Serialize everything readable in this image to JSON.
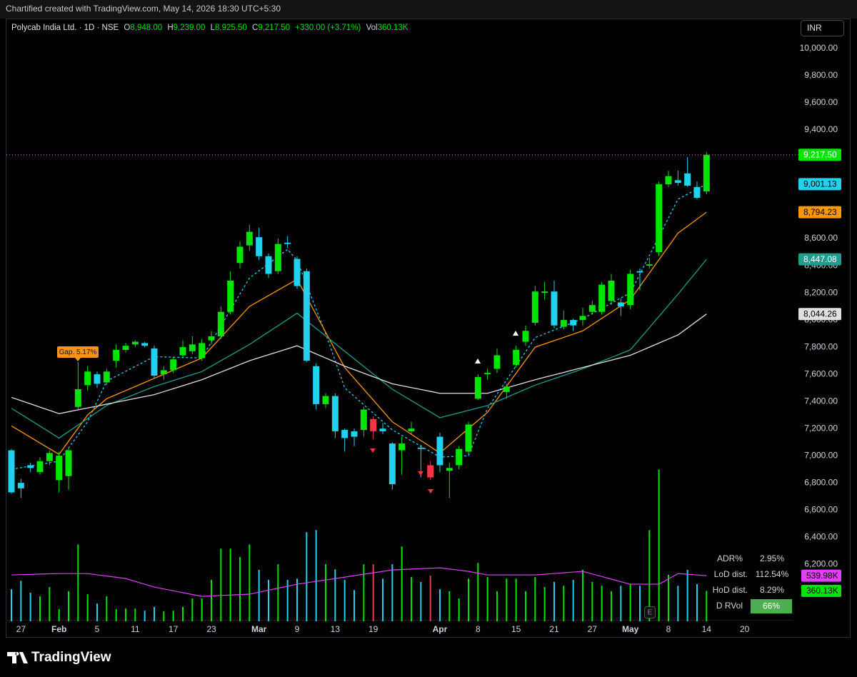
{
  "header": {
    "created": "Chartified created with TradingView.com, May 14, 2026 18:30 UTC+5:30",
    "currency": "INR",
    "brand": "TradingView"
  },
  "legend": {
    "symbol": "Polycab India Ltd. · 1D · NSE",
    "items": [
      {
        "key": "O",
        "value": "8,948.00"
      },
      {
        "key": "H",
        "value": "9,239.00"
      },
      {
        "key": "L",
        "value": "8,925.50"
      },
      {
        "key": "C",
        "value": "9,217.50"
      }
    ],
    "change": "+330.00 (+3.71%)",
    "vol_key": "Vol",
    "vol": "360.13K"
  },
  "stats": [
    {
      "label": "ADR%",
      "value": "2.95%"
    },
    {
      "label": "LoD dist.",
      "value": "112.54%"
    },
    {
      "label": "HoD dist.",
      "value": "8.29%"
    },
    {
      "label": "D RVol",
      "value": "66%"
    }
  ],
  "chart_data": {
    "type": "candlestick",
    "annotation": "Gap. 5.17%",
    "earnings_icon": "E",
    "categories": [
      null,
      "27",
      null,
      null,
      null,
      "Feb",
      null,
      null,
      null,
      "5",
      null,
      null,
      null,
      "11",
      null,
      null,
      null,
      "17",
      null,
      null,
      null,
      "23",
      null,
      null,
      null,
      null,
      "Mar",
      null,
      null,
      null,
      "9",
      null,
      null,
      null,
      "13",
      null,
      null,
      null,
      "19",
      null,
      null,
      null,
      null,
      null,
      null,
      "Apr",
      null,
      null,
      null,
      "8",
      null,
      null,
      null,
      "15",
      null,
      null,
      null,
      "21",
      null,
      null,
      null,
      "27",
      null,
      null,
      null,
      "May",
      null,
      null,
      null,
      "8",
      null,
      null,
      null,
      "14",
      null,
      null,
      null,
      "20"
    ],
    "open": [
      7040,
      6800,
      6930,
      6880,
      6960,
      6820,
      6850,
      7360,
      7520,
      7600,
      7540,
      7700,
      7780,
      7820,
      7830,
      7790,
      7600,
      7630,
      7740,
      7770,
      7720,
      7850,
      7880,
      8060,
      8420,
      8550,
      8610,
      8470,
      8360,
      8570,
      8450,
      8360,
      7660,
      7380,
      7440,
      7190,
      7180,
      7190,
      7270,
      7200,
      7090,
      7040,
      7180,
      7060,
      6930,
      7140,
      6890,
      6930,
      7030,
      7420,
      7600,
      7640,
      7470,
      7670,
      7840,
      7980,
      8200,
      8210,
      7950,
      8000,
      8000,
      8060,
      8060,
      8140,
      8130,
      8110,
      8360,
      8400,
      8500,
      9000,
      9030,
      9080,
      8980,
      8948,
      null,
      null,
      null,
      null
    ],
    "high": [
      7050,
      6830,
      6950,
      6990,
      7040,
      7030,
      7060,
      7690,
      7660,
      7620,
      7640,
      7820,
      7830,
      7850,
      7840,
      7810,
      7660,
      7730,
      7850,
      7880,
      7860,
      7920,
      8100,
      8360,
      8580,
      8700,
      8680,
      8490,
      8600,
      8620,
      8470,
      8380,
      7680,
      7460,
      7460,
      7200,
      7200,
      7360,
      7290,
      7240,
      7100,
      7140,
      7250,
      7080,
      6960,
      7170,
      6950,
      7070,
      7250,
      7600,
      7640,
      7790,
      7530,
      7810,
      7960,
      8250,
      8280,
      8290,
      8070,
      8010,
      8090,
      8140,
      8280,
      8340,
      8160,
      8370,
      8380,
      8460,
      9020,
      9100,
      9100,
      9200,
      9020,
      9239,
      null,
      null,
      null,
      null
    ],
    "low": [
      6720,
      6690,
      6880,
      6860,
      6930,
      6730,
      6750,
      7340,
      7480,
      7500,
      7520,
      7650,
      7760,
      7800,
      7800,
      7570,
      7560,
      7610,
      7720,
      7750,
      7700,
      7820,
      7860,
      8040,
      8380,
      8510,
      8440,
      8310,
      8340,
      8530,
      8230,
      7690,
      7340,
      7350,
      7130,
      7030,
      7070,
      7140,
      7120,
      7160,
      6750,
      6860,
      7160,
      6840,
      6820,
      6880,
      6690,
      6900,
      7010,
      7410,
      7560,
      7610,
      7420,
      7650,
      7810,
      7960,
      8150,
      7940,
      7930,
      7920,
      7960,
      8040,
      8040,
      8110,
      8030,
      8080,
      8220,
      8380,
      8470,
      8980,
      8990,
      8980,
      8890,
      8925.5,
      null,
      null,
      null,
      null
    ],
    "close": [
      6730,
      6760,
      6910,
      6960,
      7020,
      7000,
      7040,
      7490,
      7620,
      7530,
      7620,
      7780,
      7810,
      7840,
      7810,
      7590,
      7630,
      7710,
      7800,
      7820,
      7830,
      7880,
      8060,
      8290,
      8540,
      8650,
      8470,
      8340,
      8560,
      8560,
      8250,
      7700,
      7380,
      7440,
      7180,
      7130,
      7140,
      7340,
      7180,
      7180,
      6790,
      7090,
      7200,
      7050,
      6840,
      6930,
      6910,
      7050,
      7230,
      7580,
      7610,
      7740,
      7510,
      7780,
      7920,
      8210,
      8210,
      7960,
      8000,
      7960,
      8030,
      8110,
      8260,
      8290,
      8100,
      8340,
      8350,
      8410,
      9000,
      9060,
      9010,
      8990,
      8900,
      9217.5,
      null,
      null,
      null,
      null
    ],
    "last_label": "9,217.50",
    "last_color": "#00e600",
    "colors": [
      "#22d1ee",
      "#22d1ee",
      "#22d1ee",
      "#00e600",
      "#00e600",
      "#00e600",
      "#00e600",
      "#00e600",
      "#00e600",
      "#22d1ee",
      "#00e600",
      "#00e600",
      "#00e600",
      "#00e600",
      "#22d1ee",
      "#22d1ee",
      "#00e600",
      "#00e600",
      "#00e600",
      "#00e600",
      "#00e600",
      "#00e600",
      "#00e600",
      "#00e600",
      "#00e600",
      "#00e600",
      "#22d1ee",
      "#22d1ee",
      "#00e600",
      "#22d1ee",
      "#22d1ee",
      "#22d1ee",
      "#22d1ee",
      "#00e600",
      "#22d1ee",
      "#22d1ee",
      "#22d1ee",
      "#00e600",
      "#f23645",
      "#22d1ee",
      "#22d1ee",
      "#00e600",
      "#00e600",
      "#22d1ee",
      "#f23645",
      "#22d1ee",
      "#00e600",
      "#00e600",
      "#00e600",
      "#00e600",
      "#00e600",
      "#00e600",
      "#00e600",
      "#00e600",
      "#00e600",
      "#00e600",
      "#00e600",
      "#22d1ee",
      "#00e600",
      "#22d1ee",
      "#00e600",
      "#00e600",
      "#00e600",
      "#00e600",
      "#22d1ee",
      "#00e600",
      "#22d1ee",
      "#00e600",
      "#00e600",
      "#00e600",
      "#22d1ee",
      "#22d1ee",
      "#22d1ee",
      "#00e600",
      null,
      null,
      null,
      null
    ],
    "lines": [
      {
        "color": "#22d1ee",
        "dashed": true,
        "last_label": "9,001.13",
        "values": [
          6900,
          6912,
          6924,
          6936,
          6948,
          6960,
          7057,
          7153,
          7250,
          7400,
          7550,
          7586,
          7622,
          7658,
          7694,
          7730,
          7728,
          7726,
          7724,
          7722,
          7720,
          7838,
          7956,
          8074,
          8192,
          8310,
          8362,
          8415,
          8467,
          8520,
          8440,
          8260,
          8080,
          7900,
          7700,
          7500,
          7438,
          7376,
          7314,
          7252,
          7190,
          7150,
          7110,
          7070,
          7030,
          6990,
          6993,
          6997,
          7000,
          7175,
          7350,
          7454,
          7558,
          7662,
          7766,
          7870,
          7898,
          7926,
          7954,
          7982,
          8010,
          8048,
          8086,
          8124,
          8162,
          8200,
          8338,
          8476,
          8614,
          8752,
          8890,
          8927,
          8964,
          9001.13,
          null,
          null,
          null,
          null
        ]
      },
      {
        "color": "#ff9800",
        "dashed": false,
        "last_label": "8,794.23",
        "values": [
          7220,
          7178,
          7136,
          7094,
          7052,
          7010,
          7107,
          7203,
          7300,
          7360,
          7420,
          7450,
          7480,
          7510,
          7540,
          7570,
          7600,
          7630,
          7660,
          7690,
          7720,
          7796,
          7872,
          7948,
          8024,
          8100,
          8140,
          8180,
          8220,
          8260,
          8300,
          8170,
          8040,
          7910,
          7780,
          7650,
          7570,
          7490,
          7410,
          7330,
          7250,
          7204,
          7158,
          7112,
          7066,
          7020,
          7080,
          7140,
          7200,
          7260,
          7320,
          7416,
          7512,
          7608,
          7704,
          7800,
          7824,
          7848,
          7872,
          7896,
          7920,
          7966,
          8012,
          8058,
          8104,
          8150,
          8248,
          8346,
          8444,
          8542,
          8640,
          8691,
          8743,
          8794.23,
          null,
          null,
          null,
          null
        ]
      },
      {
        "color": "#1f9e8e",
        "dashed": false,
        "last_label": "8,447.08",
        "values": [
          7350,
          7306,
          7262,
          7218,
          7174,
          7130,
          7178,
          7226,
          7274,
          7322,
          7370,
          7398,
          7426,
          7454,
          7482,
          7510,
          7532,
          7554,
          7576,
          7598,
          7620,
          7660,
          7700,
          7740,
          7780,
          7820,
          7866,
          7912,
          7958,
          8004,
          8050,
          7994,
          7938,
          7882,
          7826,
          7770,
          7714,
          7658,
          7602,
          7546,
          7490,
          7448,
          7406,
          7364,
          7322,
          7280,
          7298,
          7316,
          7334,
          7352,
          7370,
          7400,
          7430,
          7460,
          7490,
          7520,
          7544,
          7568,
          7592,
          7616,
          7640,
          7668,
          7696,
          7724,
          7752,
          7780,
          7862,
          7944,
          8026,
          8108,
          8190,
          8276,
          8361,
          8447.08,
          null,
          null,
          null,
          null
        ]
      },
      {
        "color": "#e0e0e0",
        "dashed": false,
        "last_label": "8,044.26",
        "values": [
          7430,
          7406,
          7382,
          7358,
          7334,
          7310,
          7324,
          7338,
          7352,
          7366,
          7380,
          7394,
          7408,
          7422,
          7436,
          7450,
          7472,
          7494,
          7516,
          7538,
          7560,
          7588,
          7616,
          7644,
          7672,
          7700,
          7722,
          7744,
          7766,
          7788,
          7810,
          7780,
          7750,
          7720,
          7690,
          7660,
          7634,
          7608,
          7582,
          7556,
          7530,
          7516,
          7502,
          7488,
          7474,
          7460,
          7460,
          7460,
          7460,
          7460,
          7460,
          7480,
          7500,
          7520,
          7540,
          7560,
          7578,
          7596,
          7614,
          7632,
          7650,
          7668,
          7686,
          7704,
          7722,
          7740,
          7770,
          7800,
          7830,
          7860,
          7890,
          7941,
          7993,
          8044.26,
          null,
          null,
          null,
          null
        ]
      }
    ],
    "volume": {
      "last_label": "360.13K",
      "last_color": "#00e600",
      "values": [
        380,
        480,
        340,
        295,
        405,
        145,
        355,
        910,
        320,
        210,
        295,
        145,
        150,
        150,
        125,
        170,
        120,
        125,
        170,
        270,
        270,
        490,
        860,
        860,
        760,
        910,
        610,
        490,
        675,
        490,
        505,
        1055,
        1080,
        675,
        615,
        490,
        370,
        675,
        675,
        505,
        675,
        885,
        525,
        465,
        540,
        380,
        355,
        270,
        505,
        690,
        525,
        355,
        505,
        505,
        355,
        525,
        405,
        465,
        420,
        490,
        610,
        465,
        420,
        355,
        420,
        440,
        420,
        1080,
        1797,
        550,
        420,
        610,
        440,
        360.13,
        null,
        null,
        null,
        null
      ]
    },
    "volume_avg": {
      "color": "#e040fb",
      "last_label": "539.98K",
      "values": [
        549,
        552,
        555,
        559,
        562,
        565,
        565,
        565,
        565,
        550,
        536,
        521,
        506,
        472,
        439,
        405,
        383,
        361,
        339,
        317,
        295,
        300,
        306,
        311,
        316,
        321,
        345,
        368,
        392,
        415,
        439,
        456,
        473,
        489,
        506,
        523,
        540,
        557,
        574,
        591,
        608,
        613,
        618,
        623,
        628,
        633,
        619,
        605,
        591,
        570,
        549,
        549,
        549,
        549,
        549,
        549,
        557,
        566,
        574,
        583,
        591,
        561,
        530,
        500,
        469,
        439,
        439,
        439,
        439,
        502,
        565,
        557,
        548,
        539.98,
        null,
        null,
        null,
        null
      ]
    },
    "ylim": [
      5780,
      10200
    ],
    "yticks": [
      {
        "value": 6200,
        "label": "6,200.00"
      },
      {
        "value": 6400,
        "label": "6,400.00"
      },
      {
        "value": 6600,
        "label": "6,600.00"
      },
      {
        "value": 6800,
        "label": "6,800.00"
      },
      {
        "value": 7000,
        "label": "7,000.00"
      },
      {
        "value": 7200,
        "label": "7,200.00"
      },
      {
        "value": 7400,
        "label": "7,400.00"
      },
      {
        "value": 7600,
        "label": "7,600.00"
      },
      {
        "value": 7800,
        "label": "7,800.00"
      },
      {
        "value": 8000,
        "label": "8,000.00"
      },
      {
        "value": 8200,
        "label": "8,200.00"
      },
      {
        "value": 8400,
        "label": "8,400.00"
      },
      {
        "value": 8600,
        "label": "8,600.00"
      },
      {
        "value": 8800,
        "label": "8,800.00"
      },
      {
        "value": 9000,
        "label": "9,000.00"
      },
      {
        "value": 9200,
        "label": "9,200.00"
      },
      {
        "value": 9400,
        "label": "9,400.00"
      },
      {
        "value": 9600,
        "label": "9,600.00"
      },
      {
        "value": 9800,
        "label": "9,800.00"
      },
      {
        "value": 10000,
        "label": "10,000.00"
      }
    ],
    "y2lim": [
      0,
      1860
    ],
    "grid": false
  }
}
